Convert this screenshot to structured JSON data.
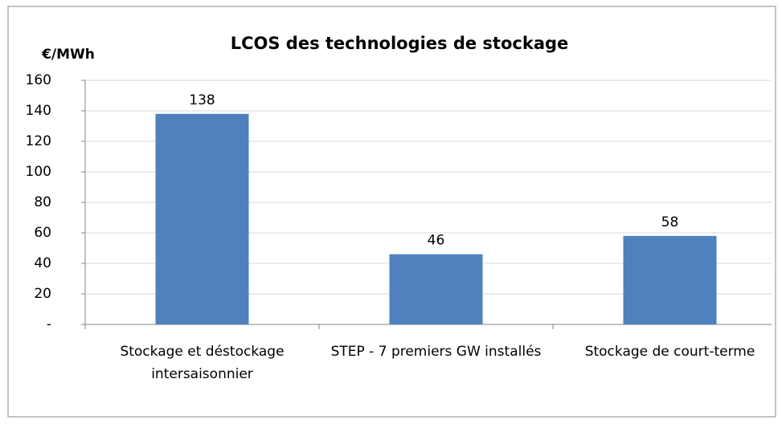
{
  "chart_data": {
    "type": "bar",
    "title": "LCOS des technologies de stockage",
    "y_label": "€/MWh",
    "categories": [
      "Stockage et déstockage intersaisonnier",
      "STEP - 7 premiers GW installés",
      "Stockage de court-terme"
    ],
    "values": [
      138,
      46,
      58
    ],
    "color": "#4f81bd",
    "ylim": [
      0,
      160
    ],
    "yticks": [
      {
        "value": 0,
        "label": "-"
      },
      20,
      40,
      60,
      80,
      100,
      120,
      140,
      160
    ],
    "grid": true
  }
}
